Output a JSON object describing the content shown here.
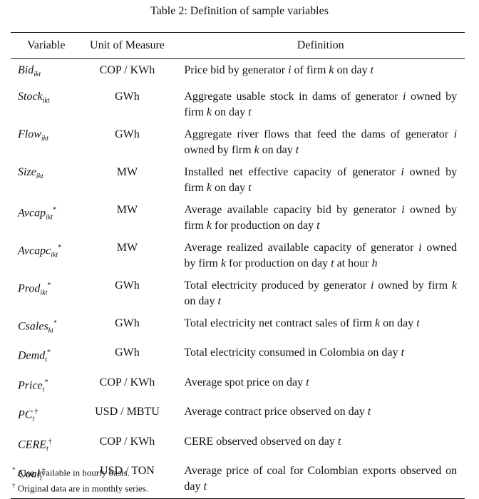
{
  "title": "Table 2: Definition of sample variables",
  "table": {
    "header": [
      "Variable",
      "Unit of Measure",
      "Definition"
    ],
    "rows": [
      {
        "variable": {
          "name": "Bid",
          "sub": "ikt"
        },
        "unit": "COP / KWh",
        "definition": "Price bid by generator i of firm k on day t"
      },
      {
        "variable": {
          "name": "Stock",
          "sub": "ikt"
        },
        "unit": "GWh",
        "definition": "Aggregate usable stock in dams of generator i owned by firm k on day t"
      },
      {
        "variable": {
          "name": "Flow",
          "sub": "ikt"
        },
        "unit": "GWh",
        "definition": "Aggregate river flows that feed the dams of generator i owned by firm k on day t"
      },
      {
        "variable": {
          "name": "Size",
          "sub": "ikt"
        },
        "unit": "MW",
        "definition": "Installed net effective capacity of generator i owned by firm k on day t"
      },
      {
        "variable": {
          "name": "Avcap",
          "sub": "ikt",
          "mark": "*"
        },
        "unit": "MW",
        "definition": "Average available capacity bid by generator i owned by firm k for production on day t"
      },
      {
        "variable": {
          "name": "Avcapc",
          "sub": "ikt",
          "mark": "*"
        },
        "unit": "MW",
        "definition": "Average realized available capacity of generator i owned by firm k for production on day t at hour h"
      },
      {
        "variable": {
          "name": "Prod",
          "sub": "ikt",
          "mark": "*"
        },
        "unit": "GWh",
        "definition": "Total electricity produced by generator i owned by firm k on day t"
      },
      {
        "variable": {
          "name": "Csales",
          "sub": "kt",
          "mark": "*"
        },
        "unit": "GWh",
        "definition": "Total electricity net contract sales of firm k on day t"
      },
      {
        "variable": {
          "name": "Demd",
          "sub": "t",
          "mark": "*"
        },
        "unit": "GWh",
        "definition": "Total electricity consumed in Colombia on day t"
      },
      {
        "variable": {
          "name": "Price",
          "sub": "t",
          "mark": "*"
        },
        "unit": "COP / KWh",
        "definition": "Average spot price on day t"
      },
      {
        "variable": {
          "name": "PC",
          "sub": "t",
          "mark": "†"
        },
        "unit": "USD / MBTU",
        "definition": "Average contract price observed on day t"
      },
      {
        "variable": {
          "name": "CERE",
          "sub": "t",
          "mark": "†"
        },
        "unit": "COP / KWh",
        "definition": "CERE observed observed on day t"
      },
      {
        "variable": {
          "name": "Coal",
          "sub": "t",
          "mark": "†"
        },
        "unit": "USD / TON",
        "definition": "Average price of coal for Colombian exports observed on day t"
      }
    ]
  },
  "footnotes": [
    {
      "mark": "*",
      "text": "Also available in hourly basis."
    },
    {
      "mark": "†",
      "text": "Original data are in monthly series."
    }
  ]
}
